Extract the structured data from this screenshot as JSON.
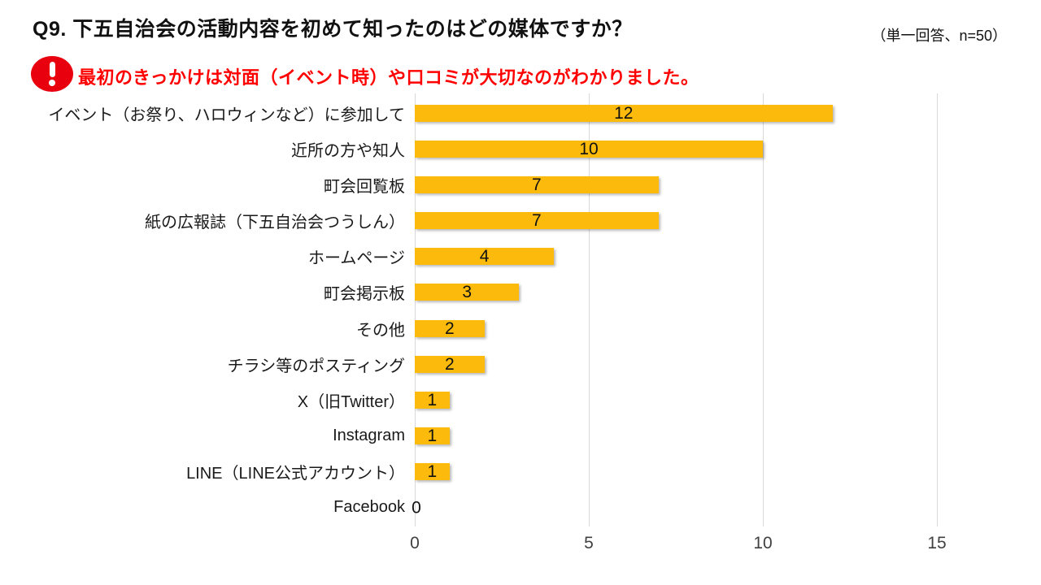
{
  "header": {
    "title": "Q9. 下五自治会の活動内容を初めて知ったのはどの媒体ですか？",
    "note": "（単一回答、n=50）"
  },
  "insight": {
    "icon": "exclamation-icon",
    "text": "最初のきっかけは対面（イベント時）や口コミが大切なのがわかりました。"
  },
  "chart_data": {
    "type": "bar",
    "orientation": "horizontal",
    "title": "",
    "categories": [
      "イベント（お祭り、ハロウィンなど）に参加して",
      "近所の方や知人",
      "町会回覧板",
      "紙の広報誌（下五自治会つうしん）",
      "ホームページ",
      "町会掲示板",
      "その他",
      "チラシ等のポスティング",
      "X（旧Twitter）",
      "Instagram",
      "LINE（LINE公式アカウント）",
      "Facebook"
    ],
    "values": [
      12,
      10,
      7,
      7,
      4,
      3,
      2,
      2,
      1,
      1,
      1,
      0
    ],
    "x_ticks": [
      0,
      5,
      10,
      15
    ],
    "xlim": [
      0,
      15
    ],
    "grid": true,
    "legend": false,
    "value_labels": "inside-center",
    "xlabel": "",
    "ylabel": ""
  },
  "colors": {
    "bar": "#FCBB0C",
    "icon_red": "#E9000F",
    "text_red": "#FF0000",
    "gridline": "#D9D9D9",
    "tick_text": "#404040"
  }
}
